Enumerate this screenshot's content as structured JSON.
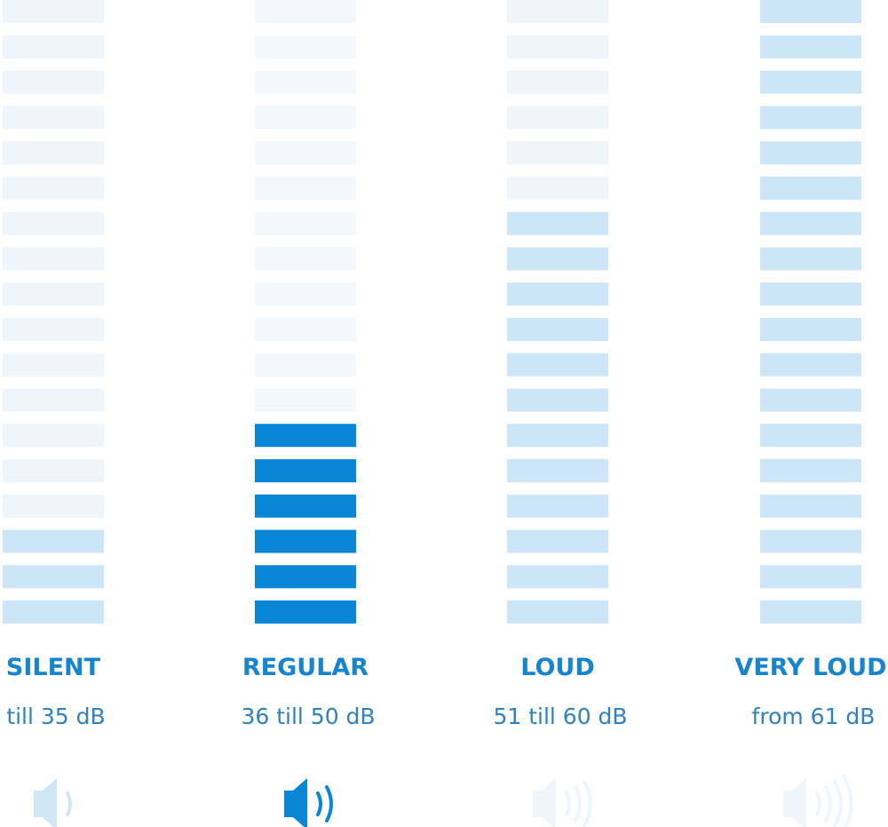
{
  "segments": 18,
  "columns": [
    {
      "label": "SILENT",
      "range": "till 35 dB",
      "active": 3,
      "tone": "light"
    },
    {
      "label": "REGULAR",
      "range": "36 till 50 dB",
      "active": 6,
      "tone": "dark"
    },
    {
      "label": "LOUD",
      "range": "51 till 60 dB",
      "active": 12,
      "tone": "light"
    },
    {
      "label": "VERY LOUD",
      "range": "from 61 dB",
      "active": 18,
      "tone": "light"
    }
  ]
}
